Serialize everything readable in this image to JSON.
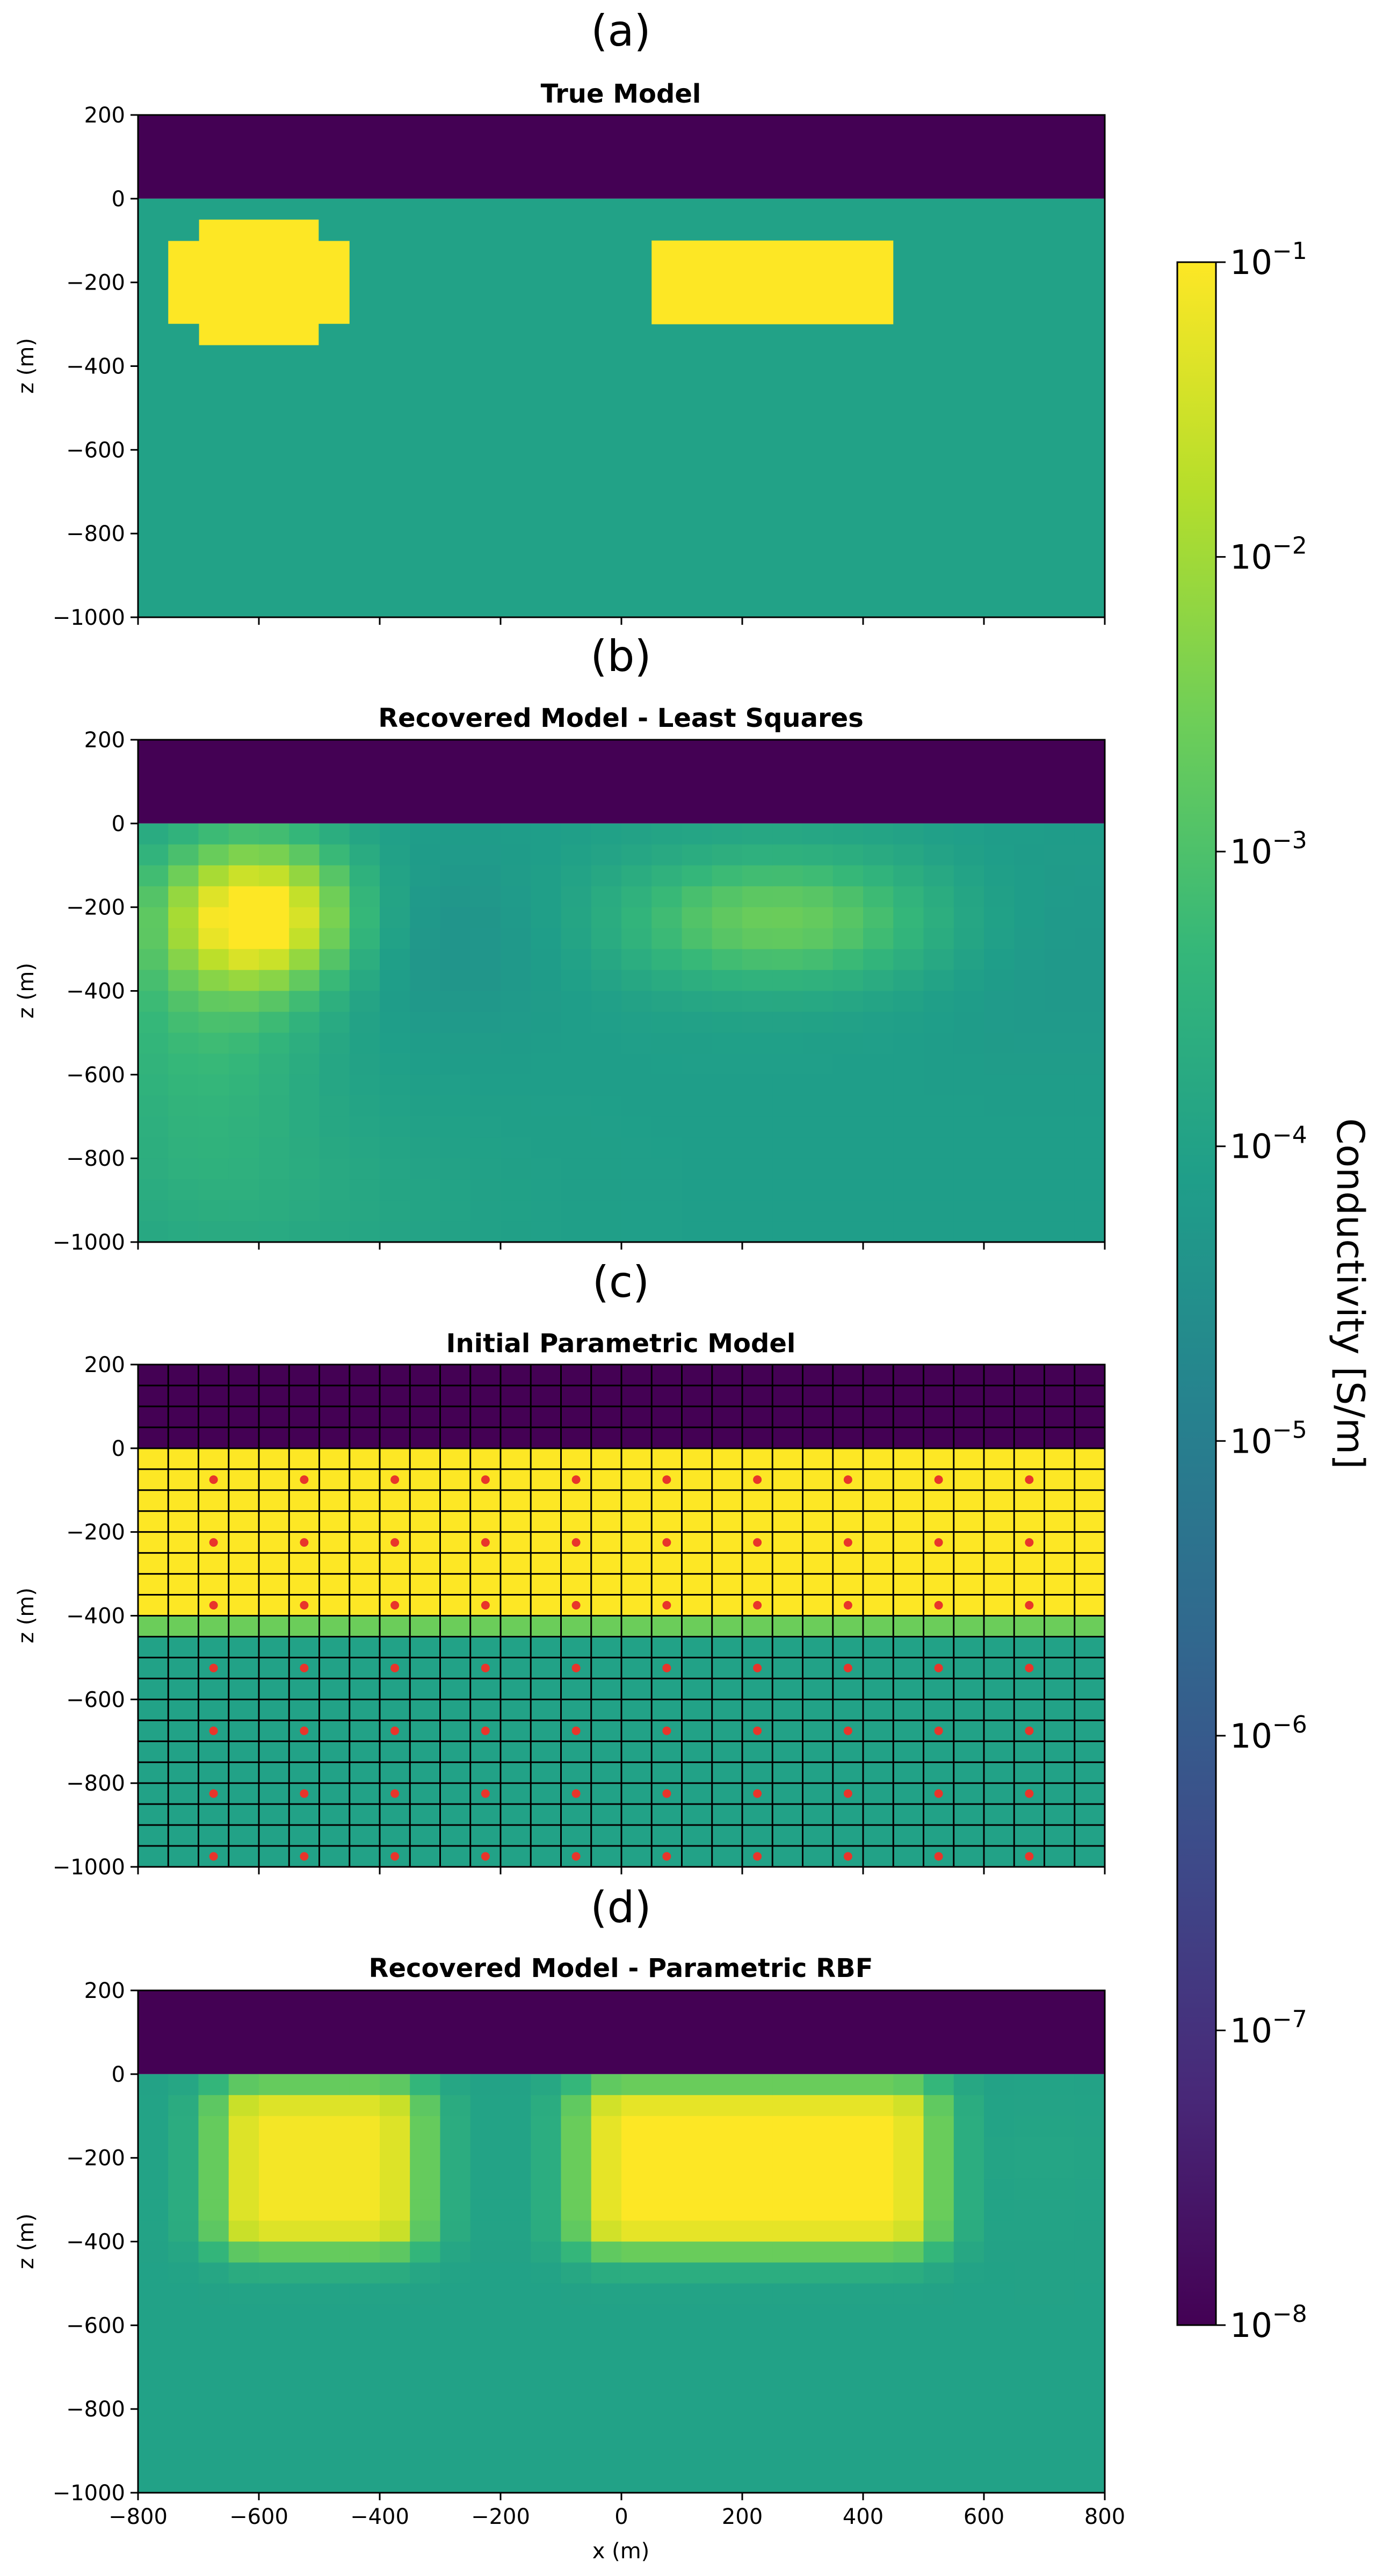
{
  "figure": {
    "colorbar": {
      "label": "Conductivity [S/m]",
      "scale": "log",
      "range": [
        1e-08,
        0.1
      ],
      "tick_exponents": [
        "-8",
        "-7",
        "-6",
        "-5",
        "-4",
        "-3",
        "-2",
        "-1"
      ],
      "tick_base": "10",
      "colormap": "viridis",
      "colors": [
        "#440154",
        "#482878",
        "#3e4989",
        "#31688e",
        "#26828e",
        "#1f9e89",
        "#35b779",
        "#6ece58",
        "#b5de2b",
        "#fde725"
      ]
    },
    "shared_axes": {
      "xlabel": "x (m)",
      "ylabel": "z (m)",
      "xlim": [
        -800,
        800
      ],
      "ylim": [
        -1000,
        200
      ],
      "xticks": [
        "−800",
        "−600",
        "−400",
        "−200",
        "0",
        "200",
        "400",
        "600",
        "800"
      ],
      "yticks": [
        "200",
        "0",
        "−200",
        "−400",
        "−600",
        "−800",
        "−1000"
      ]
    },
    "panels": [
      {
        "letter": "(a)",
        "title": "True Model"
      },
      {
        "letter": "(b)",
        "title": "Recovered Model - Least Squares"
      },
      {
        "letter": "(c)",
        "title": "Initial Parametric Model"
      },
      {
        "letter": "(d)",
        "title": "Recovered Model - Parametric RBF"
      }
    ]
  },
  "chart_data": [
    {
      "type": "heatmap",
      "title": "True Model",
      "xlabel": "",
      "ylabel": "z (m)",
      "xlim": [
        -800,
        800
      ],
      "ylim": [
        -1000,
        200
      ],
      "units": "log10 conductivity (S/m)",
      "air": {
        "z_range": [
          0,
          200
        ],
        "log10_sigma": -8
      },
      "background": {
        "log10_sigma": -4
      },
      "bodies": [
        {
          "shape": "rounded-rectangle",
          "x_range": [
            -750,
            -450
          ],
          "z_range": [
            -350,
            -50
          ],
          "log10_sigma": -1
        },
        {
          "shape": "rectangle",
          "x_range": [
            50,
            450
          ],
          "z_range": [
            -300,
            -100
          ],
          "log10_sigma": -1
        }
      ]
    },
    {
      "type": "heatmap",
      "title": "Recovered Model - Least Squares",
      "xlabel": "",
      "ylabel": "z (m)",
      "xlim": [
        -800,
        800
      ],
      "ylim": [
        -1000,
        200
      ],
      "units": "log10 conductivity (S/m)",
      "air": {
        "z_range": [
          0,
          200
        ],
        "log10_sigma": -8
      },
      "background": {
        "log10_sigma": -4.1
      },
      "anomalies": [
        {
          "x": -600,
          "z": -220,
          "sx": 110,
          "sz": 120,
          "amp": 3.2
        },
        {
          "x": -690,
          "z": -470,
          "sx": 140,
          "sz": 260,
          "amp": 0.8
        },
        {
          "x": 260,
          "z": -230,
          "sx": 190,
          "sz": 110,
          "amp": 1.5
        },
        {
          "x": -300,
          "z": -280,
          "sx": 150,
          "sz": 150,
          "amp": -0.35
        },
        {
          "x": 700,
          "z": -300,
          "sx": 150,
          "sz": 200,
          "amp": -0.2
        },
        {
          "x": -600,
          "z": -900,
          "sx": 250,
          "sz": 150,
          "amp": 0.3
        }
      ]
    },
    {
      "type": "heatmap",
      "title": "Initial Parametric Model",
      "xlabel": "",
      "ylabel": "z (m)",
      "xlim": [
        -800,
        800
      ],
      "ylim": [
        -1000,
        200
      ],
      "units": "log10 conductivity (S/m)",
      "layers": [
        {
          "z_range": [
            0,
            200
          ],
          "log10_sigma": -8
        },
        {
          "z_range": [
            -400,
            0
          ],
          "log10_sigma": -1
        },
        {
          "z_range": [
            -1000,
            -400
          ],
          "log10_sigma": -4
        }
      ],
      "transition": {
        "z_range": [
          -450,
          -400
        ],
        "log10_sigma": -2.6
      },
      "mesh_cell_size": [
        50,
        50
      ],
      "rbf_centers": {
        "x": [
          -675,
          -525,
          -375,
          -225,
          -75,
          75,
          225,
          375,
          525,
          675
        ],
        "z": [
          -75,
          -225,
          -375,
          -525,
          -675,
          -825,
          -975
        ]
      }
    },
    {
      "type": "heatmap",
      "title": "Recovered Model - Parametric RBF",
      "xlabel": "x (m)",
      "ylabel": "z (m)",
      "xlim": [
        -800,
        800
      ],
      "ylim": [
        -1000,
        200
      ],
      "units": "log10 conductivity (S/m)",
      "air": {
        "z_range": [
          0,
          200
        ],
        "log10_sigma": -8
      },
      "background": {
        "log10_sigma": -4
      },
      "bodies": [
        {
          "x_range": [
            -600,
            -400
          ],
          "z_range": [
            -350,
            -100
          ],
          "log10_sigma": -1.1
        },
        {
          "x_range": [
            0,
            450
          ],
          "z_range": [
            -350,
            -100
          ],
          "log10_sigma": -1
        }
      ]
    }
  ]
}
